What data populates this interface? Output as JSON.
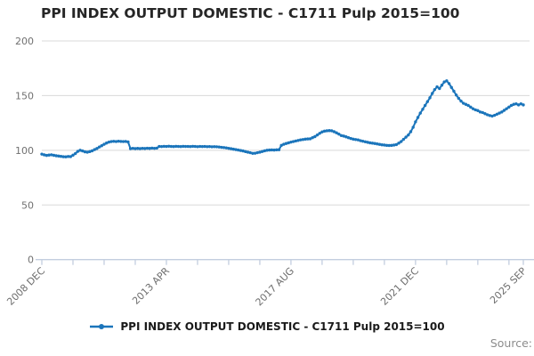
{
  "title": "PPI INDEX OUTPUT DOMESTIC - C1711 Pulp 2015=100",
  "source_label": "Source:",
  "legend": {
    "label": "PPI INDEX OUTPUT DOMESTIC - C1711 Pulp 2015=100",
    "color": "#1b75bb"
  },
  "colors": {
    "series": "#1b75bb",
    "grid": "#d9d9d9",
    "axis": "#c3cedf",
    "tick_text": "#6e6e6e"
  },
  "chart_data": {
    "type": "line",
    "title": "PPI INDEX OUTPUT DOMESTIC - C1711 Pulp 2015=100",
    "xlabel": "",
    "ylabel": "",
    "x_start": "2008 DEC",
    "x_end": "2025 SEP",
    "frequency": "monthly",
    "ylim": [
      0,
      200
    ],
    "yticks": [
      0,
      50,
      100,
      150,
      200
    ],
    "grid": "horizontal",
    "legend_position": "bottom-center",
    "x_tick_labels": [
      "2008 DEC",
      "2013 APR",
      "2017 AUG",
      "2021 DEC",
      "2025 SEP"
    ],
    "x_tick_months": [
      0,
      52,
      104,
      156,
      201
    ],
    "minor_tick_interval_months": 13,
    "series": [
      {
        "name": "PPI INDEX OUTPUT DOMESTIC - C1711 Pulp 2015=100",
        "color": "#1b75bb",
        "values": [
          96.5,
          95.8,
          95.3,
          95.6,
          95.9,
          95.4,
          95.0,
          94.7,
          94.4,
          94.1,
          94.0,
          94.3,
          94.2,
          95.5,
          97.0,
          99.0,
          100.0,
          99.4,
          98.6,
          98.3,
          98.8,
          99.5,
          100.6,
          101.6,
          103.0,
          104.2,
          105.5,
          106.6,
          107.5,
          108.0,
          108.2,
          108.0,
          108.3,
          108.1,
          108.0,
          108.1,
          107.6,
          101.5,
          101.8,
          101.5,
          101.7,
          101.5,
          101.8,
          101.6,
          101.9,
          101.7,
          102.0,
          101.8,
          102.0,
          103.5,
          103.4,
          103.6,
          103.5,
          103.7,
          103.5,
          103.4,
          103.6,
          103.5,
          103.4,
          103.6,
          103.5,
          103.5,
          103.4,
          103.6,
          103.5,
          103.3,
          103.5,
          103.4,
          103.5,
          103.3,
          103.4,
          103.2,
          103.3,
          103.2,
          103.0,
          102.7,
          102.5,
          102.2,
          101.8,
          101.4,
          101.0,
          100.6,
          100.2,
          99.8,
          99.4,
          98.8,
          98.3,
          97.8,
          97.2,
          97.3,
          97.8,
          98.3,
          98.9,
          99.5,
          100.0,
          100.2,
          100.3,
          100.2,
          100.4,
          100.5,
          104.5,
          105.5,
          106.2,
          106.8,
          107.5,
          108.0,
          108.5,
          109.0,
          109.5,
          109.8,
          110.2,
          110.4,
          110.5,
          111.5,
          112.5,
          114.0,
          115.5,
          116.8,
          117.5,
          117.8,
          118.0,
          117.8,
          117.0,
          116.0,
          114.8,
          113.5,
          113.0,
          112.3,
          111.5,
          110.8,
          110.2,
          109.8,
          109.5,
          108.8,
          108.3,
          107.8,
          107.3,
          106.8,
          106.5,
          106.2,
          105.8,
          105.4,
          105.0,
          104.8,
          104.5,
          104.4,
          104.5,
          104.8,
          105.2,
          106.5,
          108.0,
          110.0,
          112.0,
          114.0,
          117.0,
          121.0,
          126.0,
          130.0,
          134.0,
          137.5,
          141.0,
          144.5,
          148.0,
          152.0,
          155.5,
          158.0,
          156.5,
          159.5,
          162.5,
          163.5,
          161.0,
          157.5,
          154.0,
          150.5,
          147.5,
          145.0,
          143.0,
          142.0,
          141.0,
          139.5,
          138.0,
          137.0,
          136.3,
          135.0,
          134.5,
          133.5,
          132.5,
          131.8,
          131.3,
          132.0,
          133.0,
          134.0,
          135.0,
          136.5,
          138.0,
          139.5,
          141.0,
          142.0,
          142.5,
          141.5,
          142.5,
          141.5
        ]
      }
    ]
  }
}
